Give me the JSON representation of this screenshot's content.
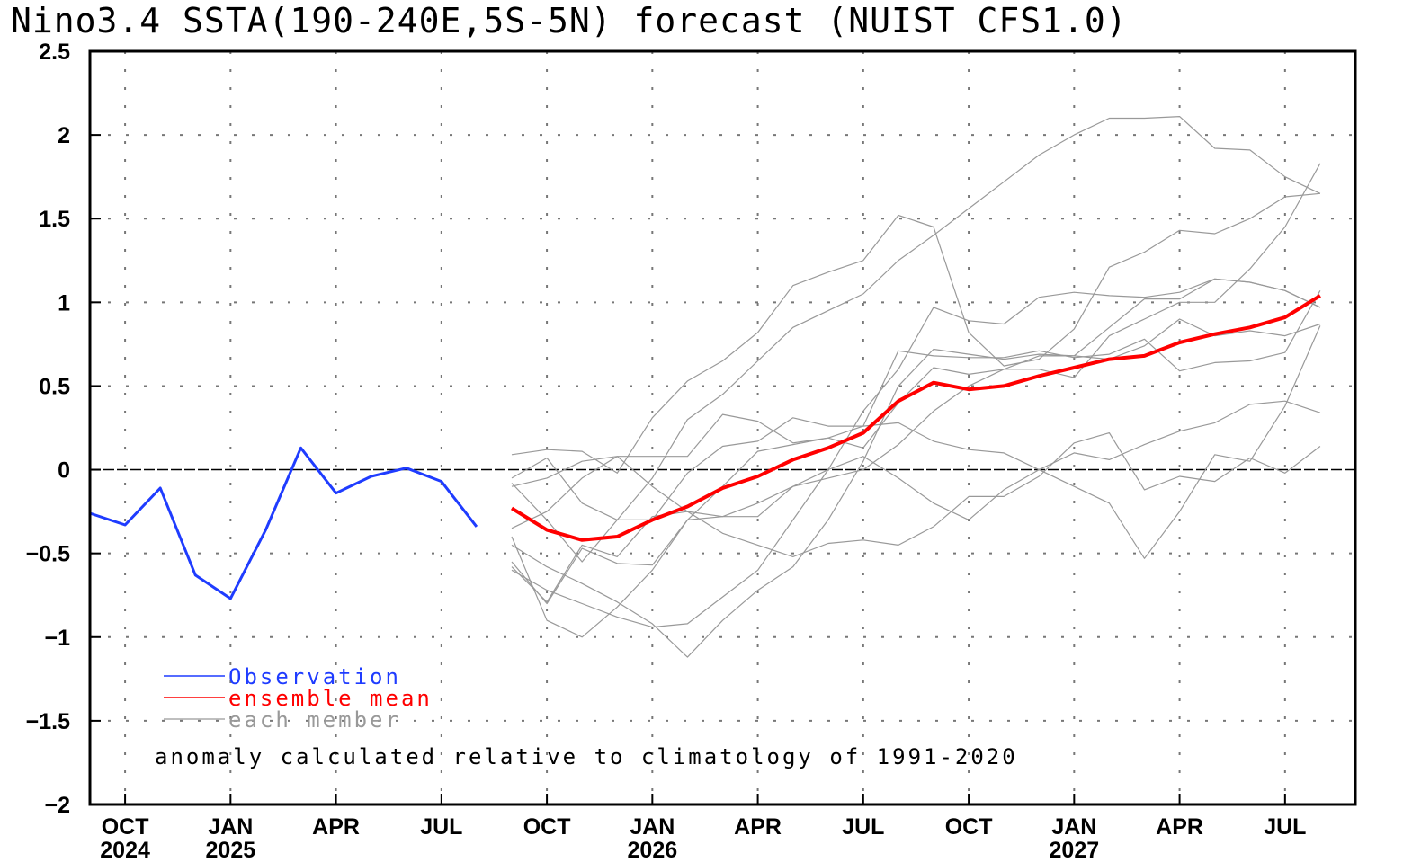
{
  "chart_data": {
    "type": "line",
    "title": "Nino3.4 SSTA(190-240E,5S-5N) forecast (NUIST CFS1.0)",
    "xlabel": "",
    "ylabel": "",
    "ylim": [
      -2,
      2.5
    ],
    "yticks": [
      -2,
      -1.5,
      -1,
      -0.5,
      0,
      0.5,
      1,
      1.5,
      2,
      2.5
    ],
    "ytick_labels": [
      "-2",
      "-1.5",
      "-1",
      "-0.5",
      "0",
      "0.5",
      "1",
      "1.5",
      "2",
      "2.5"
    ],
    "xlim": [
      "2024-09",
      "2027-09"
    ],
    "xticks": [
      {
        "month": "2024-10",
        "label": "OCT",
        "year": "2024"
      },
      {
        "month": "2025-01",
        "label": "JAN",
        "year": "2025"
      },
      {
        "month": "2025-04",
        "label": "APR",
        "year": ""
      },
      {
        "month": "2025-07",
        "label": "JUL",
        "year": ""
      },
      {
        "month": "2025-10",
        "label": "OCT",
        "year": ""
      },
      {
        "month": "2026-01",
        "label": "JAN",
        "year": "2026"
      },
      {
        "month": "2026-04",
        "label": "APR",
        "year": ""
      },
      {
        "month": "2026-07",
        "label": "JUL",
        "year": ""
      },
      {
        "month": "2026-10",
        "label": "OCT",
        "year": ""
      },
      {
        "month": "2027-01",
        "label": "JAN",
        "year": "2027"
      },
      {
        "month": "2027-04",
        "label": "APR",
        "year": ""
      },
      {
        "month": "2027-07",
        "label": "JUL",
        "year": ""
      }
    ],
    "grid": true,
    "legend_position": "bottom-left",
    "annotation": "anomaly calculated relative to climatology of 1991-2020",
    "series": [
      {
        "name": "Observation",
        "color": "#1f3cff",
        "start": "2024-09",
        "values": [
          -0.26,
          -0.33,
          -0.11,
          -0.63,
          -0.77,
          -0.36,
          0.13,
          -0.14,
          -0.04,
          0.01,
          -0.07,
          -0.34
        ]
      },
      {
        "name": "ensemble mean",
        "color": "#ff0000",
        "start": "2025-09",
        "values": [
          -0.23,
          -0.36,
          -0.42,
          -0.4,
          -0.3,
          -0.22,
          -0.11,
          -0.04,
          0.06,
          0.13,
          0.22,
          0.41,
          0.52,
          0.48,
          0.5,
          0.56,
          0.61,
          0.66,
          0.68,
          0.76,
          0.81,
          0.85,
          0.91,
          1.04
        ]
      }
    ],
    "members": {
      "name": "each member",
      "color": "#999999",
      "start": "2025-09",
      "values": [
        [
          -0.05,
          0.07,
          -0.2,
          -0.3,
          -0.05,
          0.3,
          0.45,
          0.65,
          0.85,
          0.95,
          1.05,
          1.25,
          1.4,
          1.56,
          1.72,
          1.88,
          2.0,
          2.1,
          2.1,
          2.11,
          1.92,
          1.91,
          1.75,
          1.65
        ],
        [
          0.09,
          0.12,
          0.11,
          -0.02,
          0.31,
          0.53,
          0.65,
          0.82,
          1.1,
          1.18,
          1.25,
          1.52,
          1.45,
          0.82,
          0.62,
          0.66,
          0.84,
          1.21,
          1.3,
          1.43,
          1.41,
          1.5,
          1.63,
          1.65
        ],
        [
          -0.35,
          -0.25,
          -0.05,
          0.08,
          0.08,
          0.08,
          0.33,
          0.29,
          0.16,
          0.19,
          0.13,
          0.4,
          0.61,
          0.57,
          0.6,
          0.68,
          0.68,
          0.85,
          1.02,
          1.02,
          1.14,
          1.12,
          1.07,
          0.97
        ],
        [
          -0.55,
          -0.8,
          -0.47,
          -0.56,
          -0.57,
          -0.3,
          -0.28,
          -0.28,
          -0.1,
          0.0,
          0.08,
          -0.05,
          -0.2,
          -0.3,
          -0.12,
          0.0,
          0.1,
          0.06,
          0.15,
          0.23,
          0.28,
          0.39,
          0.41,
          0.34
        ],
        [
          -0.4,
          -0.9,
          -1.0,
          -0.82,
          -0.6,
          -0.3,
          -0.1,
          0.11,
          0.15,
          0.19,
          0.26,
          0.28,
          0.17,
          0.12,
          0.1,
          0.0,
          -0.1,
          -0.2,
          -0.53,
          -0.25,
          0.09,
          0.05,
          0.38,
          0.86
        ],
        [
          -0.6,
          -0.72,
          -0.8,
          -0.88,
          -0.94,
          -0.92,
          -0.76,
          -0.6,
          -0.3,
          0.0,
          0.35,
          0.6,
          0.97,
          0.89,
          0.87,
          1.03,
          1.06,
          1.04,
          1.03,
          1.06,
          1.14,
          1.12,
          1.07,
          0.97
        ],
        [
          -0.45,
          -0.58,
          -0.68,
          -0.79,
          -0.92,
          -1.12,
          -0.9,
          -0.72,
          -0.58,
          -0.3,
          0.05,
          0.5,
          0.72,
          0.69,
          0.66,
          0.69,
          0.68,
          0.66,
          0.74,
          0.9,
          0.8,
          0.83,
          0.8,
          0.87
        ],
        [
          -0.08,
          -0.3,
          -0.55,
          -0.3,
          -0.3,
          -0.02,
          0.14,
          0.17,
          0.31,
          0.26,
          0.26,
          0.71,
          0.68,
          0.67,
          0.67,
          0.71,
          0.67,
          0.69,
          0.78,
          0.59,
          0.64,
          0.65,
          0.7,
          1.07
        ],
        [
          -0.58,
          -0.79,
          -0.45,
          -0.52,
          -0.28,
          -0.25,
          -0.38,
          -0.45,
          -0.52,
          -0.44,
          -0.42,
          -0.45,
          -0.34,
          -0.16,
          -0.16,
          -0.04,
          0.16,
          0.22,
          -0.12,
          -0.04,
          -0.07,
          0.07,
          -0.02,
          0.14
        ],
        [
          -0.1,
          -0.05,
          0.05,
          0.08,
          -0.1,
          -0.25,
          -0.28,
          -0.2,
          -0.1,
          -0.05,
          0.0,
          0.15,
          0.35,
          0.5,
          0.6,
          0.6,
          0.55,
          0.8,
          0.9,
          1.0,
          1.0,
          1.2,
          1.45,
          1.83
        ]
      ]
    }
  }
}
